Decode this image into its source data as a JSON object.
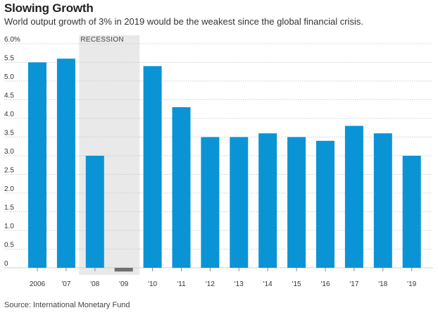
{
  "title": "Slowing Growth",
  "subtitle": "World output growth of 3% in 2019 would be the weakest since the global financial crisis.",
  "source": "Source: International Monetary Fund",
  "colors": {
    "bar": "#0a94d6",
    "negative_bar": "#707070",
    "recession_band": "#e9e9e9",
    "grid": "#cfcfcf"
  },
  "chart_data": {
    "type": "bar",
    "categories": [
      "2006",
      "'07",
      "'08",
      "'09",
      "'10",
      "'11",
      "'12",
      "'13",
      "'14",
      "'15",
      "'16",
      "'17",
      "'18",
      "'19"
    ],
    "values": [
      5.5,
      5.6,
      3.0,
      -0.1,
      5.4,
      4.3,
      3.5,
      3.5,
      3.6,
      3.5,
      3.4,
      3.8,
      3.6,
      3.0
    ],
    "ylim": [
      0,
      6.0
    ],
    "yticks": [
      "6.0%",
      "5.5",
      "5.0",
      "4.5",
      "4.0",
      "3.5",
      "3.0",
      "2.5",
      "2.0",
      "1.5",
      "1.0",
      "0.5",
      "0"
    ],
    "ytick_values": [
      6.0,
      5.5,
      5.0,
      4.5,
      4.0,
      3.5,
      3.0,
      2.5,
      2.0,
      1.5,
      1.0,
      0.5,
      0
    ],
    "annotation": {
      "label": "RECESSION",
      "categories": [
        "'08",
        "'09"
      ]
    },
    "grid": true,
    "xlabel": "",
    "ylabel": ""
  }
}
